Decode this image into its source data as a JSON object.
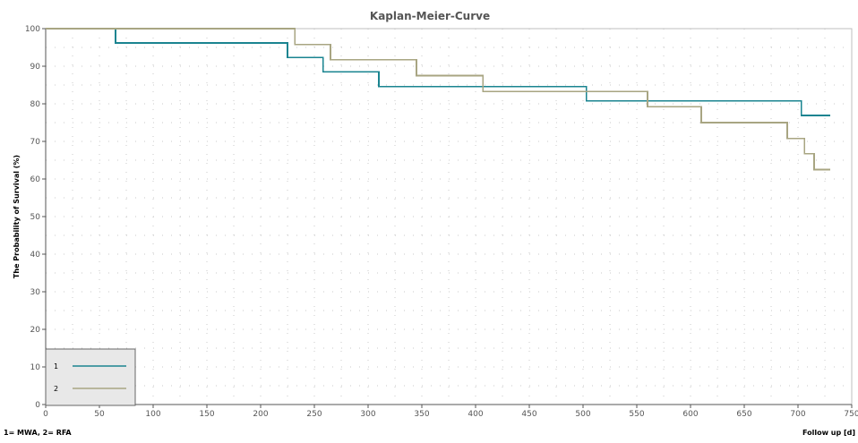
{
  "chart_data": {
    "type": "line",
    "title": "Kaplan-Meier-Curve",
    "ylabel": "The Probability of Survival (%)",
    "xlabel": "Follow up  [d]",
    "footnote": "1= MWA, 2= RFA",
    "xlim": [
      0,
      750
    ],
    "ylim": [
      0,
      100
    ],
    "xticks": [
      0,
      50,
      100,
      150,
      200,
      250,
      300,
      350,
      400,
      450,
      500,
      550,
      600,
      650,
      700,
      750
    ],
    "yticks": [
      0,
      10,
      20,
      30,
      40,
      50,
      60,
      70,
      80,
      90,
      100
    ],
    "xtick_labels": [
      "0",
      "50",
      "100",
      "150",
      "200",
      "250",
      "300",
      "350",
      "400",
      "450",
      "500",
      "550",
      "600",
      "650",
      "700",
      "750"
    ],
    "ytick_labels": [
      "0",
      "10",
      "20",
      "30",
      "40",
      "50",
      "60",
      "70",
      "80",
      "90",
      "100"
    ],
    "grid": true,
    "step": true,
    "legend_position": "bottom-left",
    "series": [
      {
        "name": "1",
        "color": "#1a8490",
        "x": [
          0,
          65,
          225,
          258,
          310,
          503,
          703,
          730
        ],
        "y": [
          100,
          96.2,
          92.3,
          88.5,
          84.6,
          80.8,
          76.9,
          76.9
        ]
      },
      {
        "name": "2",
        "color": "#a8a582",
        "x": [
          0,
          232,
          265,
          345,
          407,
          560,
          610,
          690,
          706,
          715,
          730
        ],
        "y": [
          100,
          95.8,
          91.7,
          87.5,
          83.3,
          79.2,
          75.0,
          70.8,
          66.7,
          62.5,
          62.5
        ]
      }
    ]
  }
}
